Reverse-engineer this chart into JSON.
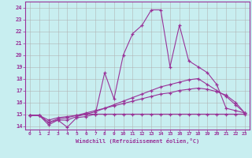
{
  "xlabel": "Windchill (Refroidissement éolien,°C)",
  "background_color": "#c8eef0",
  "line_color": "#993399",
  "spine_color": "#993399",
  "grid_color": "#b0b0b0",
  "ylim": [
    13.7,
    24.5
  ],
  "xlim": [
    -0.5,
    23.5
  ],
  "yticks": [
    14,
    15,
    16,
    17,
    18,
    19,
    20,
    21,
    22,
    23,
    24
  ],
  "xticks": [
    0,
    1,
    2,
    3,
    4,
    5,
    6,
    7,
    8,
    9,
    10,
    11,
    12,
    13,
    14,
    15,
    16,
    17,
    18,
    19,
    20,
    21,
    22,
    23
  ],
  "lines": [
    {
      "x": [
        0,
        1,
        2,
        3,
        4,
        5,
        6,
        7,
        8,
        9,
        10,
        11,
        12,
        13,
        14,
        15,
        16,
        17,
        18,
        19,
        20,
        21,
        22,
        23
      ],
      "y": [
        14.9,
        14.9,
        14.1,
        14.5,
        13.9,
        14.7,
        14.8,
        15.0,
        18.5,
        16.3,
        20.0,
        21.8,
        22.5,
        23.8,
        23.8,
        19.0,
        22.5,
        19.5,
        19.0,
        18.5,
        17.5,
        15.5,
        15.3,
        15.1
      ]
    },
    {
      "x": [
        0,
        1,
        2,
        3,
        4,
        5,
        6,
        7,
        8,
        9,
        10,
        11,
        12,
        13,
        14,
        15,
        16,
        17,
        18,
        19,
        20,
        21,
        22,
        23
      ],
      "y": [
        14.9,
        14.9,
        14.3,
        14.5,
        14.5,
        14.8,
        15.0,
        15.2,
        15.5,
        15.8,
        16.1,
        16.4,
        16.7,
        17.0,
        17.3,
        17.5,
        17.7,
        17.9,
        18.0,
        17.5,
        17.0,
        16.5,
        15.8,
        15.1
      ]
    },
    {
      "x": [
        0,
        1,
        2,
        3,
        4,
        5,
        6,
        7,
        8,
        9,
        10,
        11,
        12,
        13,
        14,
        15,
        16,
        17,
        18,
        19,
        20,
        21,
        22,
        23
      ],
      "y": [
        14.9,
        14.9,
        14.3,
        14.6,
        14.7,
        14.9,
        15.1,
        15.3,
        15.5,
        15.7,
        15.9,
        16.1,
        16.3,
        16.5,
        16.7,
        16.8,
        17.0,
        17.1,
        17.2,
        17.1,
        16.9,
        16.6,
        16.0,
        15.1
      ]
    },
    {
      "x": [
        0,
        1,
        2,
        3,
        4,
        5,
        6,
        7,
        8,
        9,
        10,
        11,
        12,
        13,
        14,
        15,
        16,
        17,
        18,
        19,
        20,
        21,
        22,
        23
      ],
      "y": [
        14.9,
        14.9,
        14.5,
        14.7,
        14.8,
        14.9,
        15.0,
        15.0,
        15.0,
        15.0,
        15.0,
        15.0,
        15.0,
        15.0,
        15.0,
        15.0,
        15.0,
        15.0,
        15.0,
        15.0,
        15.0,
        15.0,
        15.0,
        15.0
      ]
    }
  ]
}
